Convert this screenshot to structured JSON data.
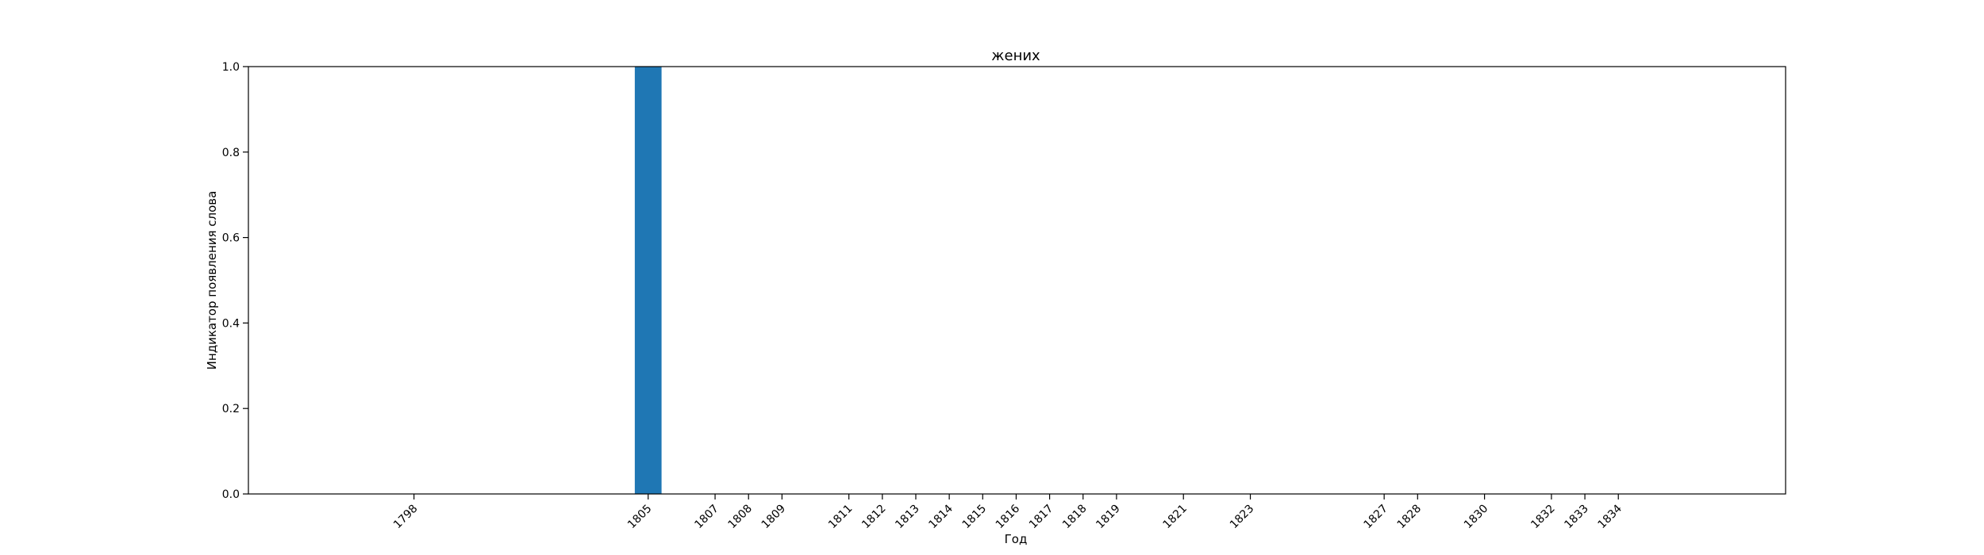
{
  "chart_data": {
    "type": "bar",
    "title": "жених",
    "xlabel": "Год",
    "ylabel": "Индикатор появления слова",
    "ylim": [
      0,
      1
    ],
    "yticks": [
      0.0,
      0.2,
      0.4,
      0.6,
      0.8,
      1.0
    ],
    "bar_color": "#1f77b4",
    "x": [
      1798,
      1805,
      1807,
      1808,
      1809,
      1811,
      1812,
      1813,
      1814,
      1815,
      1816,
      1817,
      1818,
      1819,
      1821,
      1823,
      1827,
      1828,
      1830,
      1832,
      1833,
      1834
    ],
    "values": [
      0,
      1,
      0,
      0,
      0,
      0,
      0,
      0,
      0,
      0,
      0,
      0,
      0,
      0,
      0,
      0,
      0,
      0,
      0,
      0,
      0,
      0
    ]
  }
}
